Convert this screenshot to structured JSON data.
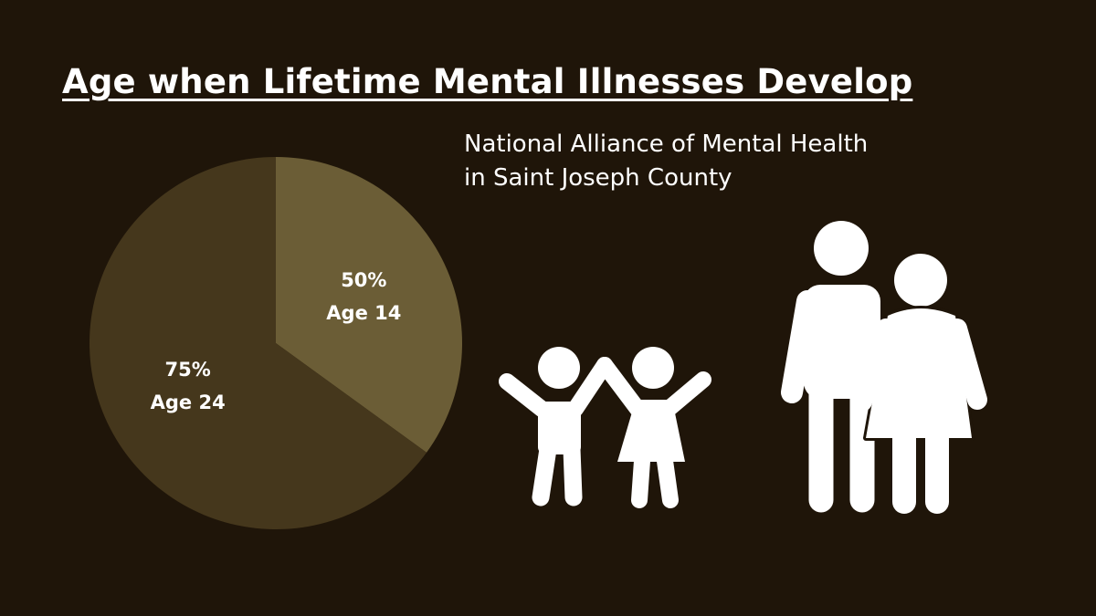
{
  "header": {
    "title": "Age when Lifetime Mental Illnesses Develop",
    "subtitle_line1": "National Alliance of Mental Health",
    "subtitle_line2": "in Saint Joseph County"
  },
  "chart_data": {
    "type": "pie",
    "slices": [
      {
        "value": 35,
        "percent_label": "50%",
        "age_label": "Age 14",
        "color": "#6b5d36"
      },
      {
        "value": 65,
        "percent_label": "75%",
        "age_label": "Age 24",
        "color": "#45371c"
      }
    ]
  },
  "icons": {
    "children": "children-holding-hands-icon",
    "parents": "adult-couple-icon"
  },
  "colors": {
    "background": "#1f1509",
    "text": "#ffffff",
    "icon": "#ffffff"
  }
}
